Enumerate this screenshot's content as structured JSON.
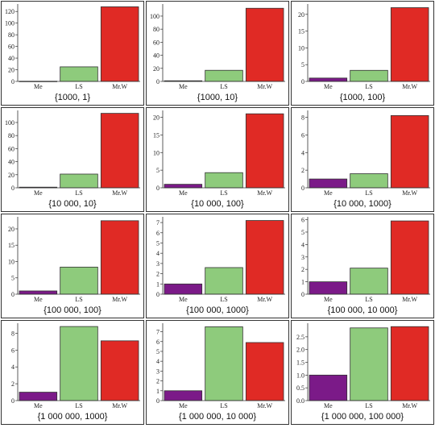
{
  "colors": {
    "Me": "#7b1a88",
    "LS": "#8ecb7c",
    "Mr.W": "#e02a25"
  },
  "chart_data": [
    {
      "type": "bar",
      "title": "{1000, 1}",
      "categories": [
        "Me",
        "LS",
        "Mr.W"
      ],
      "values": [
        0.3,
        25,
        128
      ],
      "ylim": [
        0,
        130
      ],
      "yticks": [
        "0",
        "20",
        "40",
        "60",
        "80",
        "100",
        "120"
      ],
      "ytick_values": [
        0,
        20,
        40,
        60,
        80,
        100,
        120
      ]
    },
    {
      "type": "bar",
      "title": "{1000, 10}",
      "categories": [
        "Me",
        "LS",
        "Mr.W"
      ],
      "values": [
        1,
        17,
        112
      ],
      "ylim": [
        0,
        116
      ],
      "yticks": [
        "0",
        "20",
        "40",
        "60",
        "80",
        "100"
      ],
      "ytick_values": [
        0,
        20,
        40,
        60,
        80,
        100
      ]
    },
    {
      "type": "bar",
      "title": "{1000, 100}",
      "categories": [
        "Me",
        "LS",
        "Mr.W"
      ],
      "values": [
        1,
        3.3,
        22
      ],
      "ylim": [
        0,
        22.6
      ],
      "yticks": [
        "0",
        "5",
        "10",
        "15",
        "20"
      ],
      "ytick_values": [
        0,
        5,
        10,
        15,
        20
      ]
    },
    {
      "type": "bar",
      "title": "{10 000, 10}",
      "categories": [
        "Me",
        "LS",
        "Mr.W"
      ],
      "values": [
        1,
        21,
        114
      ],
      "ylim": [
        0,
        116
      ],
      "yticks": [
        "0",
        "20",
        "40",
        "60",
        "80",
        "100"
      ],
      "ytick_values": [
        0,
        20,
        40,
        60,
        80,
        100
      ]
    },
    {
      "type": "bar",
      "title": "{10 000, 100}",
      "categories": [
        "Me",
        "LS",
        "Mr.W"
      ],
      "values": [
        1,
        4.3,
        21
      ],
      "ylim": [
        0,
        21.5
      ],
      "yticks": [
        "0",
        "5",
        "10",
        "15",
        "20"
      ],
      "ytick_values": [
        0,
        5,
        10,
        15,
        20
      ]
    },
    {
      "type": "bar",
      "title": "{10 000, 1000}",
      "categories": [
        "Me",
        "LS",
        "Mr.W"
      ],
      "values": [
        1,
        1.6,
        8.2
      ],
      "ylim": [
        0,
        8.6
      ],
      "yticks": [
        "0",
        "2",
        "4",
        "6",
        "8"
      ],
      "ytick_values": [
        0,
        2,
        4,
        6,
        8
      ]
    },
    {
      "type": "bar",
      "title": "{100 000, 100}",
      "categories": [
        "Me",
        "LS",
        "Mr.W"
      ],
      "values": [
        1,
        8.3,
        22.5
      ],
      "ylim": [
        0,
        23.2
      ],
      "yticks": [
        "0",
        "5",
        "10",
        "15",
        "20"
      ],
      "ytick_values": [
        0,
        5,
        10,
        15,
        20
      ]
    },
    {
      "type": "bar",
      "title": "{100 000, 1000}",
      "categories": [
        "Me",
        "LS",
        "Mr.W"
      ],
      "values": [
        1,
        2.6,
        7.2
      ],
      "ylim": [
        0,
        7.4
      ],
      "yticks": [
        "0",
        "1",
        "2",
        "3",
        "4",
        "5",
        "6",
        "7"
      ],
      "ytick_values": [
        0,
        1,
        2,
        3,
        4,
        5,
        6,
        7
      ]
    },
    {
      "type": "bar",
      "title": "{100 000, 10 000}",
      "categories": [
        "Me",
        "LS",
        "Mr.W"
      ],
      "values": [
        1,
        2.1,
        5.9
      ],
      "ylim": [
        0,
        6.1
      ],
      "yticks": [
        "0",
        "1",
        "2",
        "3",
        "4",
        "5",
        "6"
      ],
      "ytick_values": [
        0,
        1,
        2,
        3,
        4,
        5,
        6
      ]
    },
    {
      "type": "bar",
      "title": "{1 000 000, 1000}",
      "categories": [
        "Me",
        "LS",
        "Mr.W"
      ],
      "values": [
        1,
        8.8,
        7.1
      ],
      "ylim": [
        0,
        9
      ],
      "yticks": [
        "0",
        "2",
        "4",
        "6",
        "8"
      ],
      "ytick_values": [
        0,
        2,
        4,
        6,
        8
      ]
    },
    {
      "type": "bar",
      "title": "{1 000 000, 10 000}",
      "categories": [
        "Me",
        "LS",
        "Mr.W"
      ],
      "values": [
        1,
        7.5,
        5.9
      ],
      "ylim": [
        0,
        7.7
      ],
      "yticks": [
        "0",
        "1",
        "2",
        "3",
        "4",
        "5",
        "6",
        "7"
      ],
      "ytick_values": [
        0,
        1,
        2,
        3,
        4,
        5,
        6,
        7
      ]
    },
    {
      "type": "bar",
      "title": "{1 000 000, 100 000}",
      "categories": [
        "Me",
        "LS",
        "Mr.W"
      ],
      "values": [
        1,
        2.85,
        2.9
      ],
      "ylim": [
        0,
        2.97
      ],
      "yticks": [
        "0.0",
        "0.5",
        "1.0",
        "1.5",
        "2.0",
        "2.5"
      ],
      "ytick_values": [
        0,
        0.5,
        1,
        1.5,
        2,
        2.5
      ]
    }
  ]
}
